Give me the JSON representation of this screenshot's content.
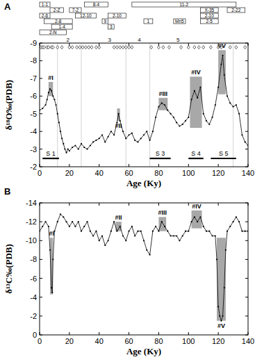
{
  "chart_data": [
    {
      "type": "line",
      "title": "A",
      "x_label": "Age (Ky)",
      "y_label": "δ¹⁸O‰(PDB)",
      "xlim": [
        0,
        140
      ],
      "xticks": [
        0,
        20,
        40,
        60,
        80,
        100,
        120,
        140
      ],
      "ylim": [
        -2,
        -9
      ],
      "yticks": [
        -9,
        -8,
        -7,
        -6,
        -5,
        -4,
        -3,
        -2
      ],
      "x": [
        0,
        2,
        4,
        5,
        6,
        7,
        8,
        9,
        10,
        11,
        12,
        13,
        14,
        15,
        16,
        17,
        18,
        19,
        20,
        22,
        24,
        26,
        28,
        30,
        32,
        34,
        36,
        38,
        40,
        42,
        44,
        46,
        48,
        50,
        52,
        53,
        54,
        56,
        58,
        60,
        62,
        64,
        66,
        68,
        70,
        72,
        74,
        76,
        78,
        80,
        82,
        84,
        86,
        88,
        90,
        92,
        94,
        96,
        98,
        100,
        102,
        104,
        106,
        108,
        110,
        112,
        114,
        116,
        118,
        120,
        122,
        123,
        124,
        126,
        128,
        130,
        132,
        134,
        136,
        138,
        140
      ],
      "series": [
        {
          "color": "#000000",
          "marker": "circle",
          "line_style": "solid",
          "values": [
            -5.2,
            -5.3,
            -5.5,
            -5.8,
            -6.2,
            -6.4,
            -6.3,
            -6.0,
            -5.8,
            -5.5,
            -5.0,
            -4.5,
            -4.0,
            -3.6,
            -3.3,
            -3.0,
            -2.8,
            -3.0,
            -2.9,
            -3.1,
            -3.2,
            -3.0,
            -3.3,
            -3.1,
            -3.0,
            -3.2,
            -3.4,
            -3.5,
            -3.6,
            -3.8,
            -3.4,
            -3.7,
            -4.0,
            -3.8,
            -4.5,
            -5.0,
            -4.6,
            -4.0,
            -3.6,
            -3.8,
            -3.9,
            -3.5,
            -3.4,
            -3.6,
            -3.8,
            -4.0,
            -3.5,
            -4.0,
            -4.8,
            -5.4,
            -5.6,
            -5.5,
            -5.2,
            -5.0,
            -4.8,
            -4.5,
            -4.3,
            -4.4,
            -4.6,
            -4.8,
            -5.8,
            -6.3,
            -5.9,
            -6.5,
            -5.0,
            -4.6,
            -4.4,
            -4.8,
            -5.5,
            -6.5,
            -7.8,
            -8.3,
            -7.2,
            -6.0,
            -5.6,
            -5.4,
            -5.5,
            -5.0,
            -3.8,
            -3.4,
            -3.2
          ]
        }
      ],
      "shaded": [
        {
          "label": "#I",
          "x": [
            6,
            9
          ],
          "y": [
            -6.0,
            -6.8
          ]
        },
        {
          "label": "#II",
          "x": [
            52,
            54
          ],
          "y": [
            -4.6,
            -5.3
          ]
        },
        {
          "label": "#III",
          "x": [
            80,
            86
          ],
          "y": [
            -5.2,
            -5.9
          ]
        },
        {
          "label": "#IV",
          "x": [
            101,
            109
          ],
          "y": [
            -4.2,
            -7.1
          ]
        },
        {
          "label": "#V",
          "x": [
            120,
            125
          ],
          "y": [
            -6.1,
            -8.6
          ]
        }
      ],
      "stages": [
        {
          "label": "S 1",
          "x": [
            2,
            13
          ]
        },
        {
          "label": "S 3",
          "x": [
            74,
            88
          ]
        },
        {
          "label": "S 4",
          "x": [
            100,
            110
          ]
        },
        {
          "label": "S 5",
          "x": [
            115,
            132
          ]
        }
      ],
      "dividers": [
        12,
        28,
        58,
        74,
        130
      ],
      "stage_numbers": [
        {
          "label": "2",
          "x": 19
        },
        {
          "label": "3",
          "x": 47
        },
        {
          "label": "4",
          "x": 67
        },
        {
          "label": "5",
          "x": 93
        }
      ],
      "dated_samples": [
        1,
        2,
        3,
        5,
        6,
        8,
        9,
        12,
        15,
        20,
        22,
        25,
        27,
        29,
        31,
        33,
        35,
        38,
        40,
        50,
        52,
        54,
        56,
        58,
        60,
        62,
        75,
        80,
        83,
        87,
        95,
        100,
        104,
        107,
        110,
        115,
        120,
        122,
        128,
        132,
        138
      ],
      "top_labels": [
        {
          "label": "1-1",
          "x": [
            0,
            5
          ]
        },
        {
          "label": "2-Z",
          "x": [
            7,
            16
          ]
        },
        {
          "label": "8-4",
          "x": [
            30,
            46
          ]
        },
        {
          "label": "11-2",
          "x": [
            62,
            132
          ]
        },
        {
          "label": "2-6",
          "x": [
            0,
            5
          ]
        },
        {
          "label": "7-2",
          "x": [
            20,
            28
          ]
        },
        {
          "label": "X-35",
          "x": [
            108,
            120
          ]
        },
        {
          "label": "2-8",
          "x": [
            3,
            22
          ]
        },
        {
          "label": "12-10",
          "x": [
            24,
            38
          ]
        },
        {
          "label": "2-10",
          "x": [
            46,
            58
          ]
        },
        {
          "label": "2-10",
          "x": [
            108,
            120
          ]
        },
        {
          "label": "1-4",
          "x": [
            8,
            22
          ]
        },
        {
          "label": "9",
          "x": [
            42,
            46
          ]
        },
        {
          "label": "3",
          "x": [
            46,
            50
          ]
        },
        {
          "label": "1",
          "x": [
            70,
            76
          ]
        },
        {
          "label": "Mn5",
          "x": [
            90,
            98
          ]
        },
        {
          "label": "2-5",
          "x": [
            108,
            120
          ]
        },
        {
          "label": "2-22",
          "x": [
            126,
            138
          ]
        },
        {
          "label": "2-N",
          "x": [
            0,
            18
          ]
        }
      ]
    },
    {
      "type": "line",
      "title": "B",
      "x_label": "Age (Ky)",
      "y_label": "δ¹³C‰(PDB)",
      "xlim": [
        0,
        140
      ],
      "xticks": [
        0,
        20,
        40,
        60,
        80,
        100,
        120,
        140
      ],
      "ylim": [
        0,
        -14
      ],
      "yticks": [
        -14,
        -12,
        -10,
        -8,
        -6,
        -4,
        -2,
        0
      ],
      "x": [
        0,
        2,
        4,
        6,
        7,
        8,
        8.5,
        9,
        10,
        12,
        14,
        16,
        18,
        20,
        22,
        24,
        26,
        28,
        30,
        32,
        34,
        36,
        38,
        40,
        42,
        44,
        46,
        48,
        50,
        52,
        54,
        56,
        58,
        60,
        62,
        64,
        66,
        68,
        70,
        72,
        74,
        76,
        78,
        80,
        82,
        84,
        86,
        88,
        90,
        92,
        94,
        96,
        98,
        100,
        102,
        104,
        106,
        108,
        110,
        112,
        114,
        116,
        118,
        119,
        120,
        121,
        122,
        123,
        124,
        125,
        126,
        128,
        130,
        132,
        134,
        136,
        138,
        140
      ],
      "series": [
        {
          "color": "#000000",
          "marker": "circle",
          "line_style": "solid",
          "values": [
            -11,
            -11.5,
            -12,
            -11.5,
            -9,
            -5,
            -4.5,
            -8,
            -11,
            -12,
            -12.8,
            -12.5,
            -12,
            -11.5,
            -12,
            -11.5,
            -12,
            -11,
            -11.5,
            -12,
            -11,
            -10.5,
            -11,
            -10,
            -10.5,
            -9.5,
            -10,
            -11,
            -12,
            -11,
            -11.5,
            -10.5,
            -10,
            -11,
            -11.5,
            -10.5,
            -11,
            -11,
            -10,
            -9,
            -8.5,
            -11,
            -11.5,
            -11,
            -12,
            -11.5,
            -11,
            -10.5,
            -10.5,
            -10.5,
            -10,
            -10.5,
            -11,
            -11,
            -12,
            -12.5,
            -12,
            -12.5,
            -11.5,
            -11,
            -11,
            -10.5,
            -10.5,
            -8,
            -3,
            -2,
            -1.5,
            -2,
            -5,
            -9,
            -11,
            -11.5,
            -12,
            -12.5,
            -12,
            -11,
            -11,
            -11
          ]
        }
      ],
      "shaded": [
        {
          "label": "#I",
          "x": [
            7,
            9
          ],
          "y": [
            -10.3,
            -4.3
          ]
        },
        {
          "label": "#II",
          "x": [
            51,
            55
          ],
          "y": [
            -11,
            -12
          ]
        },
        {
          "label": "#III",
          "x": [
            80,
            85
          ],
          "y": [
            -11,
            -12.5
          ]
        },
        {
          "label": "#IV",
          "x": [
            102,
            109
          ],
          "y": [
            -11.3,
            -13.2
          ]
        },
        {
          "label": "#V",
          "x": [
            119,
            125
          ],
          "y": [
            -10.3,
            -1.5
          ]
        }
      ]
    }
  ]
}
